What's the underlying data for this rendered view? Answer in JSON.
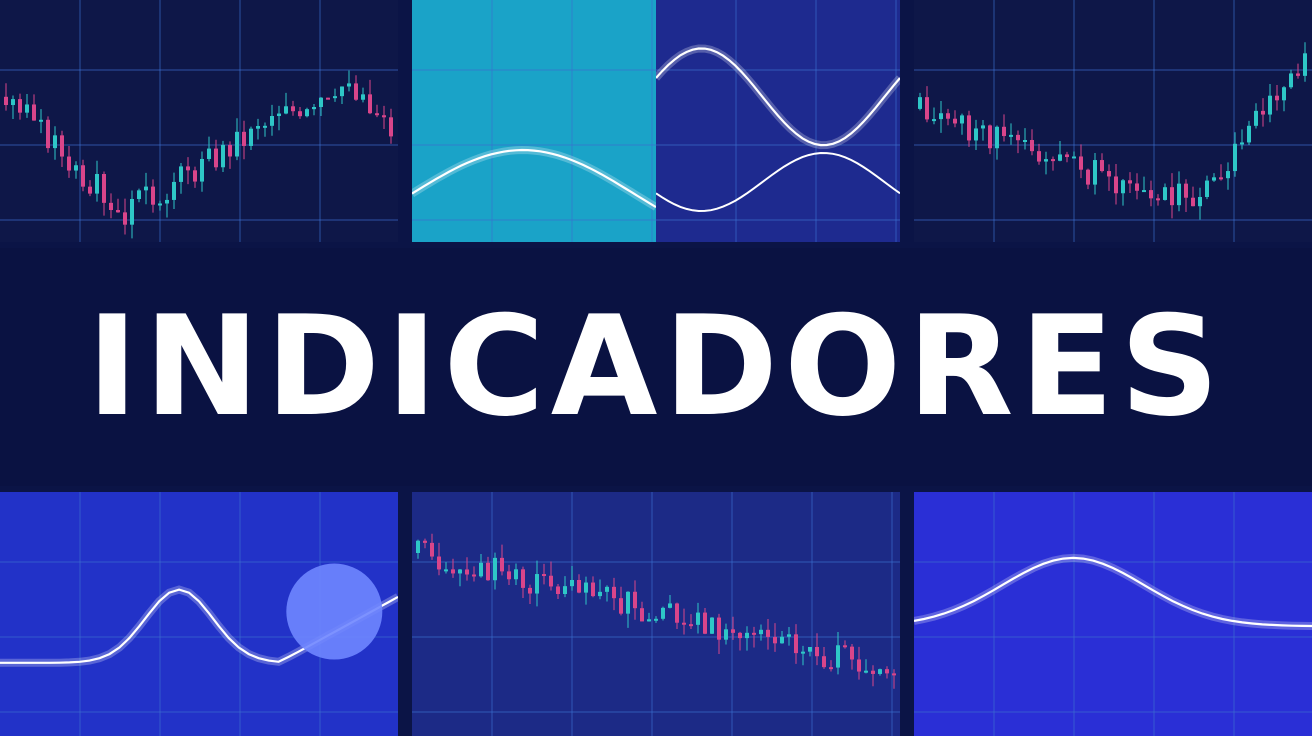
{
  "banner": {
    "title": "INDICADORES"
  },
  "colors": {
    "background": "#0b1446",
    "candle_up": "#2ec7c7",
    "candle_down": "#d9458a",
    "line": "#ffffff",
    "grid": "#3c6fd0"
  },
  "panels": [
    {
      "name": "candles-top-left",
      "kind": "candles",
      "bg": "#0e1748",
      "seed": 3,
      "trend": "v-up"
    },
    {
      "name": "line-top-center-left",
      "kind": "line",
      "bg": "#1aa3c8",
      "seed": 5,
      "trend": "hump"
    },
    {
      "name": "line-top-center-right",
      "kind": "line",
      "bg": "#1e2a8f",
      "seed": 7,
      "trend": "wave"
    },
    {
      "name": "candles-top-right",
      "kind": "candles",
      "bg": "#0e1748",
      "seed": 11,
      "trend": "dip-rise"
    },
    {
      "name": "line-bottom-left",
      "kind": "line",
      "bg": "#2232c8",
      "seed": 13,
      "trend": "peak"
    },
    {
      "name": "candles-bottom-center",
      "kind": "candles",
      "bg": "#1c2a86",
      "seed": 17,
      "trend": "down"
    },
    {
      "name": "line-bottom-right",
      "kind": "line",
      "bg": "#2a2fd6",
      "seed": 19,
      "trend": "rise-fall"
    }
  ]
}
